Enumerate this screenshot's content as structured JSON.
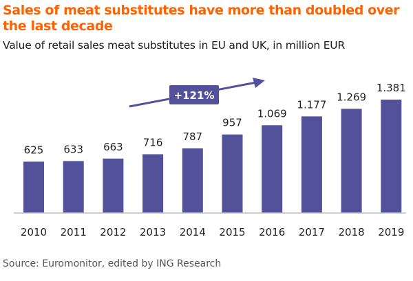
{
  "header": {
    "title": "Sales of meat substitutes have more than doubled over the last decade",
    "subtitle": "Value of retail sales meat substitutes in EU and UK, in million EUR"
  },
  "chart_data": {
    "type": "bar",
    "categories": [
      "2010",
      "2011",
      "2012",
      "2013",
      "2014",
      "2015",
      "2016",
      "2017",
      "2018",
      "2019"
    ],
    "values": [
      625,
      633,
      663,
      716,
      787,
      957,
      1069,
      1177,
      1269,
      1381
    ],
    "value_labels": [
      "625",
      "633",
      "663",
      "716",
      "787",
      "957",
      "1.069",
      "1.177",
      "1.269",
      "1.381"
    ],
    "title": "Sales of meat substitutes have more than doubled over the last decade",
    "subtitle": "Value of retail sales meat substitutes in EU and UK, in million EUR",
    "xlabel": "",
    "ylabel": "",
    "ylim": [
      0,
      1381
    ],
    "grid": false,
    "annotation": {
      "text": "+121%"
    },
    "colors": {
      "bar": "#525199",
      "axis": "#bdbdbd",
      "title": "#ff6200"
    }
  },
  "footer": {
    "source": "Source: Euromonitor, edited by ING Research"
  }
}
